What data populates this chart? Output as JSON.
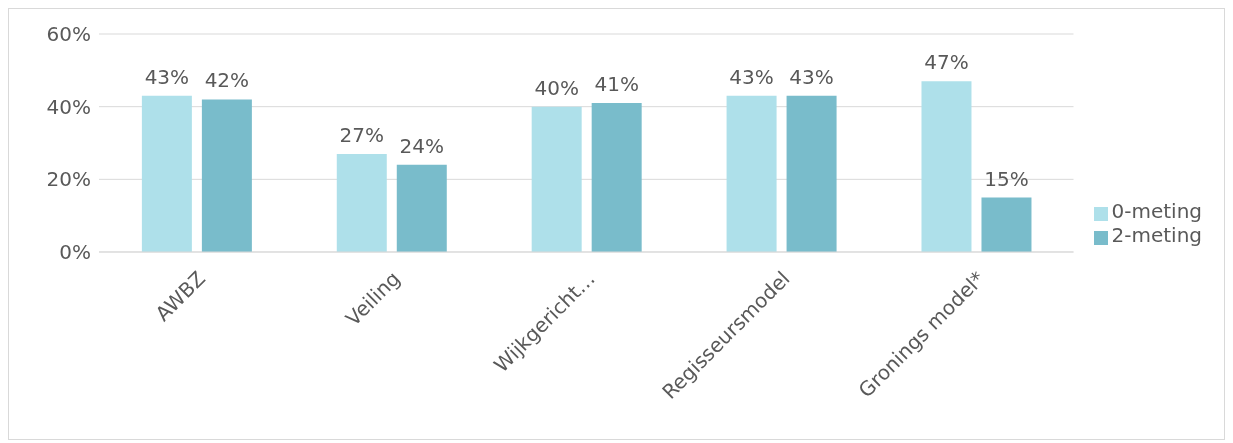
{
  "chart_data": {
    "type": "bar",
    "categories": [
      "AWBZ",
      "Veiling",
      "Wijkgericht…",
      "Regisseursmodel",
      "Gronings model*"
    ],
    "series": [
      {
        "name": "0-meting",
        "color": "#aee0ea",
        "values": [
          43,
          27,
          40,
          43,
          47
        ],
        "value_labels": [
          "43%",
          "27%",
          "40%",
          "43%",
          "47%"
        ]
      },
      {
        "name": "2-meting",
        "color": "#79bccb",
        "values": [
          42,
          24,
          41,
          43,
          15
        ],
        "value_labels": [
          "42%",
          "24%",
          "41%",
          "43%",
          "15%"
        ]
      }
    ],
    "ylim": [
      0,
      60
    ],
    "yticks": [
      {
        "value": 0,
        "label": "0%"
      },
      {
        "value": 20,
        "label": "20%"
      },
      {
        "value": 40,
        "label": "40%"
      },
      {
        "value": 60,
        "label": "60%"
      }
    ],
    "grid": "y",
    "legend": "right"
  }
}
